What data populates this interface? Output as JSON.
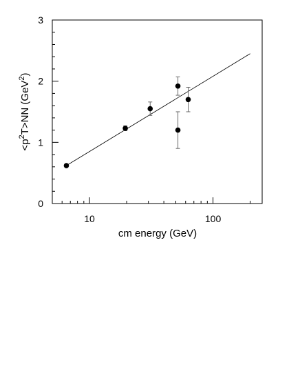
{
  "chart_data": {
    "type": "scatter",
    "title": "",
    "xlabel": "cm energy (GeV)",
    "ylabel_parts": {
      "a": "<p",
      "sup1": "2",
      "b": "T>NN (GeV",
      "sup2": "2",
      "c": ")"
    },
    "x_scale": "log",
    "xlim": [
      5,
      250
    ],
    "ylim": [
      0,
      3
    ],
    "x_ticks": [
      {
        "value": 10,
        "label": "10"
      },
      {
        "value": 100,
        "label": "100"
      }
    ],
    "y_ticks": [
      {
        "value": 0,
        "label": "0"
      },
      {
        "value": 1,
        "label": "1"
      },
      {
        "value": 2,
        "label": "2"
      },
      {
        "value": 3,
        "label": "3"
      }
    ],
    "points": [
      {
        "x": 6.5,
        "y": 0.62,
        "err": 0.02
      },
      {
        "x": 19.5,
        "y": 1.23,
        "err": 0.04
      },
      {
        "x": 31,
        "y": 1.55,
        "err": 0.11
      },
      {
        "x": 52,
        "y": 1.92,
        "err": 0.15
      },
      {
        "x": 52,
        "y": 1.2,
        "err": 0.3
      },
      {
        "x": 63,
        "y": 1.7,
        "err": 0.2
      }
    ],
    "fit_line": {
      "x": [
        6.5,
        200
      ],
      "y": [
        0.62,
        2.45
      ]
    },
    "grid": false,
    "legend": "none"
  }
}
